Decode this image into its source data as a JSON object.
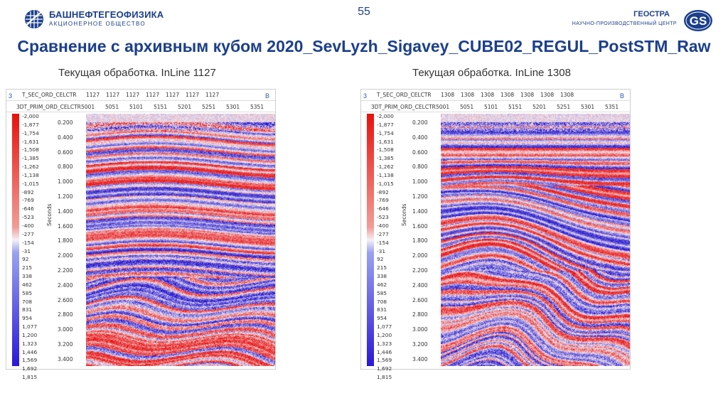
{
  "header": {
    "left_logo_name": "БАШНЕФТЕГЕОФИЗИКА",
    "left_logo_sub": "АКЦИОНЕРНОЕ ОБЩЕСТВО",
    "page_number": "55",
    "right_logo_name": "ГЕОСТРА",
    "right_logo_sub": "НАУЧНО-ПРОИЗВОДСТВЕННЫЙ ЦЕНТР",
    "right_logo_mark": "GS"
  },
  "title": "Сравнение с архивным кубом 2020_SevLyzh_Sigavey_CUBE02_REGUL_PostSTM_Raw",
  "panels": [
    {
      "subtitle": "Текущая обработка. InLine 1127",
      "corner_left": "3",
      "corner_right": "B",
      "row1_label": "T_SEC_ORD_CELCTR",
      "row1_values": [
        "1127",
        "1127",
        "1127",
        "1127",
        "1127",
        "1127",
        "1127"
      ],
      "row2_label": "3DT_PRIM_ORD_CELCTR",
      "row2_values": [
        "5001",
        "5051",
        "5101",
        "5151",
        "5201",
        "5251",
        "5301",
        "5351"
      ],
      "yaxis_label": "Seconds"
    },
    {
      "subtitle": "Текущая обработка. InLine 1308",
      "corner_left": "3",
      "corner_right": "B",
      "row1_label": "T_SEC_ORD_CELCTR",
      "row1_values": [
        "1308",
        "1308",
        "1308",
        "1308",
        "1308",
        "1308",
        "1308"
      ],
      "row2_label": "3DT_PRIM_ORD_CELCTR",
      "row2_values": [
        "5001",
        "5051",
        "5101",
        "5151",
        "5201",
        "5251",
        "5301",
        "5351"
      ],
      "yaxis_label": "Seconds"
    }
  ],
  "colorbar_labels": [
    "-2,000",
    "-1,877",
    "-1,754",
    "-1,631",
    "-1,508",
    "-1,385",
    "-1,262",
    "-1,138",
    "-1,015",
    "-892",
    "-769",
    "-646",
    "-523",
    "-400",
    "-277",
    "-154",
    "-31",
    "92",
    "215",
    "338",
    "462",
    "585",
    "708",
    "831",
    "954",
    "1,077",
    "1,200",
    "1,323",
    "1,446",
    "1,569",
    "1,692",
    "1,815"
  ],
  "time_ticks": [
    "0.200",
    "0.400",
    "0.600",
    "0.800",
    "1.000",
    "1.200",
    "1.400",
    "1.600",
    "1.800",
    "2.000",
    "2.200",
    "2.400",
    "2.600",
    "2.800",
    "3.000",
    "3.200",
    "3.400"
  ],
  "colors": {
    "brand": "#1b3f8c",
    "positive": "#2a17d8",
    "negative": "#e8120c"
  }
}
